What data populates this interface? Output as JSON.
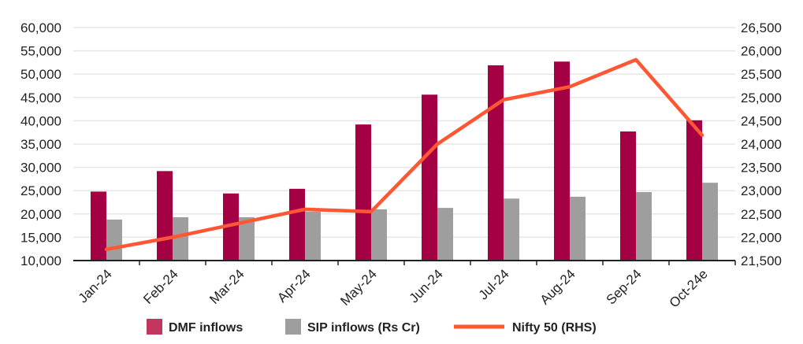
{
  "chart_data": {
    "type": "bar+line",
    "categories": [
      "Jan-24",
      "Feb-24",
      "Mar-24",
      "Apr-24",
      "May-24",
      "Jun-24",
      "Jul-24",
      "Aug-24",
      "Sep-24",
      "Oct-24e"
    ],
    "series": [
      {
        "name": "DMF inflows",
        "type": "bar",
        "axis": "left",
        "color": "#a50044",
        "values": [
          24800,
          29200,
          24400,
          25400,
          39200,
          45600,
          51900,
          52700,
          37700,
          40100
        ]
      },
      {
        "name": "SIP inflows (Rs Cr)",
        "type": "bar",
        "axis": "left",
        "color": "#9e9e9e",
        "values": [
          18800,
          19300,
          19300,
          20500,
          21000,
          21300,
          23300,
          23700,
          24700,
          26700
        ]
      },
      {
        "name": "Nifty 50 (RHS)",
        "type": "line",
        "axis": "right",
        "color": "#ff5733",
        "values": [
          21740,
          22000,
          22300,
          22600,
          22550,
          24000,
          24950,
          25230,
          25810,
          24190
        ]
      }
    ],
    "ylim_left": [
      10000,
      60000
    ],
    "ylim_right": [
      21500,
      26500
    ],
    "yticks_left": [
      "10,000",
      "15,000",
      "20,000",
      "25,000",
      "30,000",
      "35,000",
      "40,000",
      "45,000",
      "50,000",
      "55,000",
      "60,000"
    ],
    "yticks_right": [
      "21,500",
      "22,000",
      "22,500",
      "23,000",
      "23,500",
      "24,000",
      "24,500",
      "25,000",
      "25,500",
      "26,000",
      "26,500"
    ],
    "grid": true,
    "legend_position": "bottom"
  }
}
